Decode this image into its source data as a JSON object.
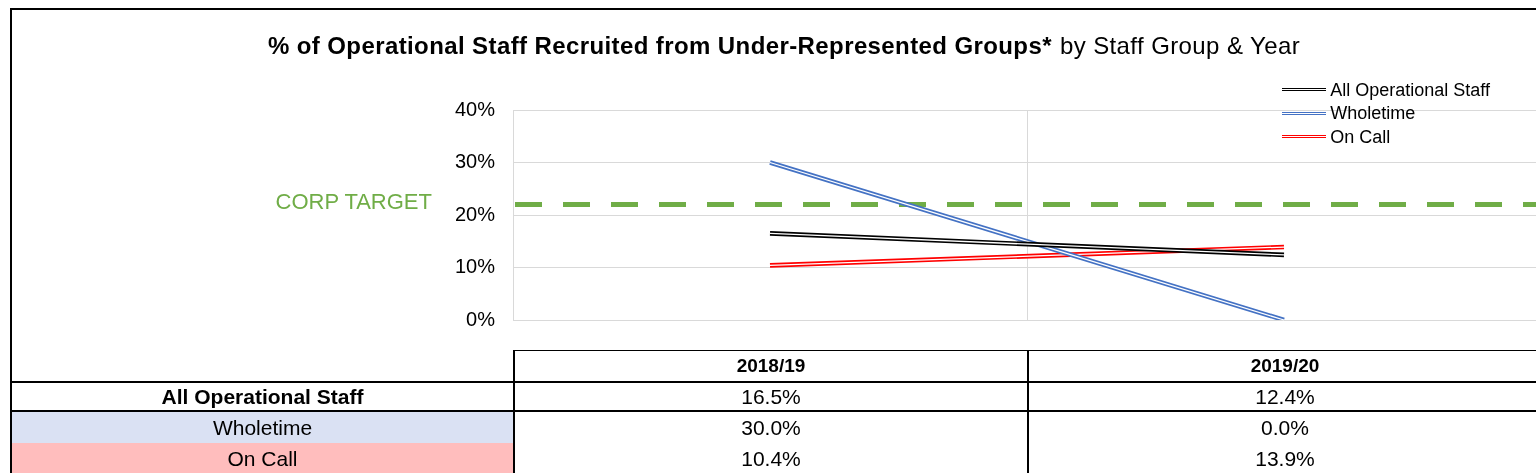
{
  "chart_data": {
    "type": "line",
    "title": "% of Operational Staff Recruited from Under-Represented Groups*",
    "subtitle": "by Staff Group & Year",
    "categories": [
      "2018/19",
      "2019/20"
    ],
    "series": [
      {
        "name": "All Operational Staff",
        "color": "#000000",
        "values": [
          16.5,
          12.4
        ],
        "value_labels": [
          "16.5%",
          "12.4%"
        ]
      },
      {
        "name": "Wholetime",
        "color": "#4472c4",
        "values": [
          30.0,
          0.0
        ],
        "value_labels": [
          "30.0%",
          "0.0%"
        ]
      },
      {
        "name": "On Call",
        "color": "#ff0000",
        "values": [
          10.4,
          13.9
        ],
        "value_labels": [
          "10.4%",
          "13.9%"
        ]
      }
    ],
    "ylim": [
      0,
      40
    ],
    "yticks": [
      {
        "value": 0,
        "label": "0%"
      },
      {
        "value": 10,
        "label": "10%"
      },
      {
        "value": 20,
        "label": "20%"
      },
      {
        "value": 30,
        "label": "30%"
      },
      {
        "value": 40,
        "label": "40%"
      }
    ],
    "ref_lines": [
      {
        "axis": "y",
        "value": 22,
        "label": "CORP TARGET",
        "color": "#70ad47",
        "line_style": "dashed"
      }
    ],
    "grid": true,
    "legend": "top right",
    "marker": "none"
  }
}
